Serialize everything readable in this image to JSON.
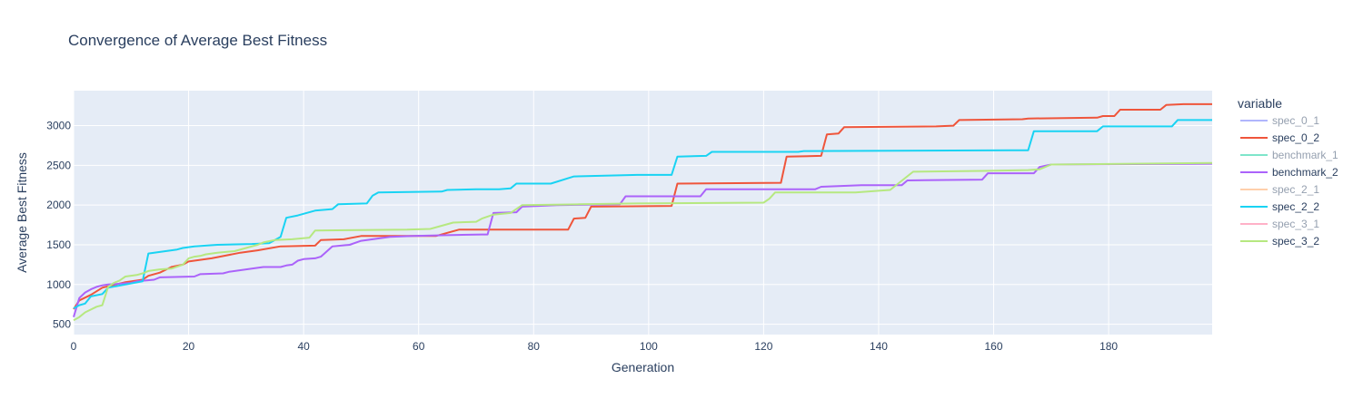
{
  "chart_data": {
    "type": "line",
    "title": "Convergence of Average Best Fitness",
    "xlabel": "Generation",
    "ylabel": "Average Best Fitness",
    "xlim": [
      0,
      198
    ],
    "ylim": [
      370,
      3440
    ],
    "x_ticks": [
      0,
      20,
      40,
      60,
      80,
      100,
      120,
      140,
      160,
      180
    ],
    "y_ticks": [
      500,
      1000,
      1500,
      2000,
      2500,
      3000
    ],
    "legend_title": "variable",
    "legend_position": "right",
    "background": "#E5ECF6",
    "series": [
      {
        "name": "spec_0_1",
        "color": "#636EFA",
        "visible": false,
        "points": []
      },
      {
        "name": "spec_0_2",
        "color": "#EF553B",
        "visible": true,
        "points": [
          [
            0,
            690
          ],
          [
            1,
            800
          ],
          [
            3,
            870
          ],
          [
            5,
            960
          ],
          [
            9,
            1030
          ],
          [
            12,
            1060
          ],
          [
            13,
            1110
          ],
          [
            15,
            1150
          ],
          [
            17,
            1220
          ],
          [
            19,
            1250
          ],
          [
            20,
            1290
          ],
          [
            24,
            1330
          ],
          [
            29,
            1400
          ],
          [
            32,
            1430
          ],
          [
            36,
            1480
          ],
          [
            42,
            1490
          ],
          [
            43,
            1560
          ],
          [
            47,
            1570
          ],
          [
            50,
            1610
          ],
          [
            54,
            1610
          ],
          [
            59,
            1610
          ],
          [
            63,
            1610
          ],
          [
            67,
            1690
          ],
          [
            86,
            1690
          ],
          [
            87,
            1830
          ],
          [
            89,
            1840
          ],
          [
            90,
            1980
          ],
          [
            104,
            1990
          ],
          [
            105,
            2270
          ],
          [
            123,
            2280
          ],
          [
            124,
            2610
          ],
          [
            130,
            2620
          ],
          [
            131,
            2890
          ],
          [
            133,
            2900
          ],
          [
            134,
            2980
          ],
          [
            150,
            2990
          ],
          [
            153,
            3000
          ],
          [
            154,
            3070
          ],
          [
            165,
            3080
          ],
          [
            166,
            3090
          ],
          [
            178,
            3100
          ],
          [
            179,
            3120
          ],
          [
            181,
            3120
          ],
          [
            182,
            3200
          ],
          [
            189,
            3200
          ],
          [
            190,
            3260
          ],
          [
            193,
            3270
          ],
          [
            198,
            3270
          ]
        ]
      },
      {
        "name": "benchmark_1",
        "color": "#00CC96",
        "visible": false,
        "points": []
      },
      {
        "name": "benchmark_2",
        "color": "#AB63FA",
        "visible": true,
        "points": [
          [
            0,
            590
          ],
          [
            1,
            830
          ],
          [
            2,
            900
          ],
          [
            3,
            940
          ],
          [
            4,
            970
          ],
          [
            5,
            990
          ],
          [
            6,
            1000
          ],
          [
            10,
            1020
          ],
          [
            11,
            1040
          ],
          [
            14,
            1060
          ],
          [
            15,
            1090
          ],
          [
            21,
            1100
          ],
          [
            22,
            1130
          ],
          [
            26,
            1140
          ],
          [
            27,
            1160
          ],
          [
            31,
            1200
          ],
          [
            33,
            1220
          ],
          [
            36,
            1220
          ],
          [
            37,
            1240
          ],
          [
            38,
            1250
          ],
          [
            39,
            1300
          ],
          [
            40,
            1320
          ],
          [
            42,
            1330
          ],
          [
            43,
            1350
          ],
          [
            45,
            1480
          ],
          [
            48,
            1500
          ],
          [
            50,
            1550
          ],
          [
            52,
            1570
          ],
          [
            55,
            1600
          ],
          [
            59,
            1610
          ],
          [
            64,
            1620
          ],
          [
            71,
            1630
          ],
          [
            72,
            1630
          ],
          [
            73,
            1900
          ],
          [
            77,
            1910
          ],
          [
            78,
            1980
          ],
          [
            84,
            2000
          ],
          [
            95,
            2010
          ],
          [
            96,
            2110
          ],
          [
            109,
            2110
          ],
          [
            110,
            2200
          ],
          [
            129,
            2200
          ],
          [
            130,
            2230
          ],
          [
            137,
            2250
          ],
          [
            144,
            2250
          ],
          [
            145,
            2310
          ],
          [
            158,
            2320
          ],
          [
            159,
            2400
          ],
          [
            167,
            2400
          ],
          [
            168,
            2480
          ],
          [
            170,
            2510
          ],
          [
            198,
            2520
          ]
        ]
      },
      {
        "name": "spec_2_1",
        "color": "#FFA15A",
        "visible": false,
        "points": []
      },
      {
        "name": "spec_2_2",
        "color": "#19D3F3",
        "visible": true,
        "points": [
          [
            0,
            700
          ],
          [
            1,
            740
          ],
          [
            2,
            760
          ],
          [
            3,
            850
          ],
          [
            5,
            880
          ],
          [
            6,
            960
          ],
          [
            9,
            1000
          ],
          [
            12,
            1040
          ],
          [
            13,
            1390
          ],
          [
            15,
            1410
          ],
          [
            17,
            1430
          ],
          [
            18,
            1440
          ],
          [
            19,
            1460
          ],
          [
            21,
            1480
          ],
          [
            25,
            1500
          ],
          [
            31,
            1510
          ],
          [
            34,
            1520
          ],
          [
            36,
            1600
          ],
          [
            37,
            1840
          ],
          [
            39,
            1870
          ],
          [
            40,
            1890
          ],
          [
            42,
            1930
          ],
          [
            45,
            1950
          ],
          [
            46,
            2010
          ],
          [
            51,
            2020
          ],
          [
            52,
            2120
          ],
          [
            53,
            2160
          ],
          [
            64,
            2170
          ],
          [
            65,
            2190
          ],
          [
            70,
            2200
          ],
          [
            74,
            2200
          ],
          [
            76,
            2210
          ],
          [
            77,
            2270
          ],
          [
            83,
            2270
          ],
          [
            87,
            2360
          ],
          [
            98,
            2380
          ],
          [
            104,
            2380
          ],
          [
            105,
            2610
          ],
          [
            110,
            2620
          ],
          [
            111,
            2670
          ],
          [
            126,
            2670
          ],
          [
            127,
            2680
          ],
          [
            163,
            2690
          ],
          [
            166,
            2690
          ],
          [
            167,
            2930
          ],
          [
            178,
            2930
          ],
          [
            179,
            2990
          ],
          [
            191,
            2990
          ],
          [
            192,
            3070
          ],
          [
            198,
            3070
          ]
        ]
      },
      {
        "name": "spec_3_1",
        "color": "#FF6692",
        "visible": false,
        "points": []
      },
      {
        "name": "spec_3_2",
        "color": "#B6E880",
        "visible": true,
        "points": [
          [
            0,
            550
          ],
          [
            1,
            590
          ],
          [
            2,
            650
          ],
          [
            4,
            720
          ],
          [
            5,
            740
          ],
          [
            6,
            970
          ],
          [
            7,
            1020
          ],
          [
            8,
            1050
          ],
          [
            9,
            1100
          ],
          [
            11,
            1120
          ],
          [
            12,
            1140
          ],
          [
            13,
            1170
          ],
          [
            15,
            1190
          ],
          [
            17,
            1200
          ],
          [
            19,
            1250
          ],
          [
            20,
            1330
          ],
          [
            21,
            1350
          ],
          [
            22,
            1360
          ],
          [
            23,
            1380
          ],
          [
            25,
            1400
          ],
          [
            28,
            1420
          ],
          [
            30,
            1460
          ],
          [
            32,
            1500
          ],
          [
            33,
            1530
          ],
          [
            35,
            1560
          ],
          [
            38,
            1570
          ],
          [
            41,
            1590
          ],
          [
            42,
            1680
          ],
          [
            58,
            1690
          ],
          [
            62,
            1700
          ],
          [
            66,
            1780
          ],
          [
            70,
            1790
          ],
          [
            71,
            1830
          ],
          [
            73,
            1880
          ],
          [
            76,
            1900
          ],
          [
            78,
            2000
          ],
          [
            88,
            2010
          ],
          [
            98,
            2020
          ],
          [
            120,
            2030
          ],
          [
            121,
            2080
          ],
          [
            122,
            2160
          ],
          [
            136,
            2160
          ],
          [
            140,
            2180
          ],
          [
            142,
            2190
          ],
          [
            146,
            2420
          ],
          [
            158,
            2430
          ],
          [
            166,
            2440
          ],
          [
            168,
            2450
          ],
          [
            170,
            2510
          ],
          [
            198,
            2530
          ]
        ]
      }
    ]
  }
}
